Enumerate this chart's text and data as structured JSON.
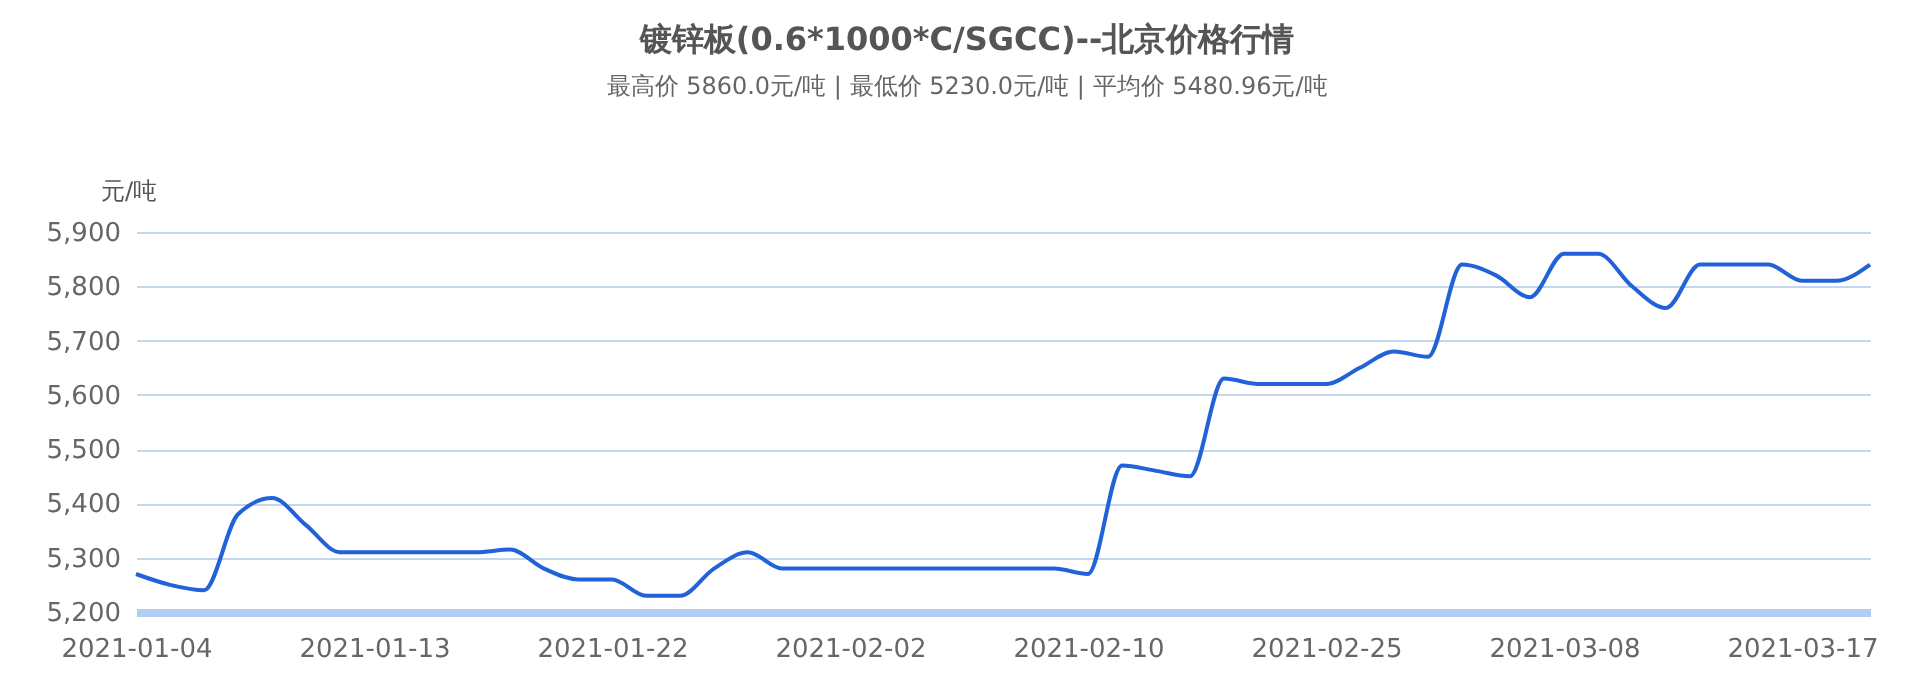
{
  "chart_data": {
    "type": "line",
    "title": "镀锌板(0.6*1000*C/SGCC)--北京价格行情",
    "subtitle": "最高价 5860.0元/吨 | 最低价 5230.0元/吨 | 平均价 5480.96元/吨",
    "ylabel": "元/吨",
    "categories": [
      "2021-01-04",
      null,
      null,
      null,
      null,
      null,
      null,
      "2021-01-13",
      null,
      null,
      null,
      null,
      null,
      null,
      "2021-01-22",
      null,
      null,
      null,
      null,
      null,
      null,
      "2021-02-02",
      null,
      null,
      null,
      null,
      null,
      null,
      "2021-02-10",
      null,
      null,
      null,
      null,
      null,
      null,
      "2021-02-25",
      null,
      null,
      null,
      null,
      null,
      null,
      "2021-03-08",
      null,
      null,
      null,
      null,
      null,
      null,
      "2021-03-17",
      null,
      null
    ],
    "series": [
      {
        "color": "#2162d9",
        "values": [
          5270,
          5250,
          5240,
          5380,
          5410,
          5360,
          5310,
          5310,
          5310,
          5310,
          5310,
          5315,
          5280,
          5260,
          5260,
          5230,
          5230,
          5280,
          5310,
          5280,
          5280,
          5280,
          5280,
          5280,
          5280,
          5280,
          5280,
          5280,
          5270,
          5470,
          5460,
          5450,
          5630,
          5620,
          5620,
          5620,
          5650,
          5680,
          5670,
          5840,
          5820,
          5780,
          5860,
          5860,
          5800,
          5760,
          5840,
          5840,
          5840,
          5810,
          5810,
          5840
        ]
      }
    ],
    "ylim": [
      5200,
      5900
    ],
    "yticks": [
      {
        "value": 5200,
        "label": "5,200"
      },
      {
        "value": 5300,
        "label": "5,300"
      },
      {
        "value": 5400,
        "label": "5,400"
      },
      {
        "value": 5500,
        "label": "5,500"
      },
      {
        "value": 5600,
        "label": "5,600"
      },
      {
        "value": 5700,
        "label": "5,700"
      },
      {
        "value": 5800,
        "label": "5,800"
      },
      {
        "value": 5900,
        "label": "5,900"
      }
    ],
    "grid": "y",
    "marker": "none",
    "line_style": "solid"
  }
}
